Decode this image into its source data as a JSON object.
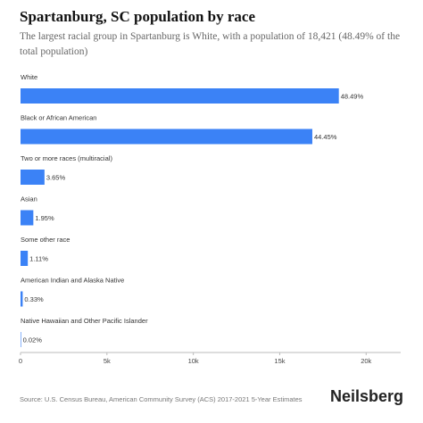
{
  "header": {
    "title": "Spartanburg, SC population by race",
    "subtitle": "The largest racial group in Spartanburg is White, with a population of 18,421 (48.49% of the total population)"
  },
  "footer": {
    "source": "Source: U.S. Census Bureau, American Community Survey (ACS) 2017-2021 5-Year Estimates",
    "brand": "Neilsberg"
  },
  "colors": {
    "bar": "#3b82f6",
    "axis": "#bbbbbb"
  },
  "chart_data": {
    "type": "bar",
    "orientation": "horizontal",
    "categories": [
      "White",
      "Black or African American",
      "Two or more races (multiracial)",
      "Asian",
      "Some other race",
      "American Indian and Alaska Native",
      "Native Hawaiian and Other Pacific Islander"
    ],
    "values": [
      18421,
      16886,
      1387,
      741,
      422,
      125,
      8
    ],
    "data_labels": [
      "48.49%",
      "44.45%",
      "3.65%",
      "1.95%",
      "1.11%",
      "0.33%",
      "0.02%"
    ],
    "xlim": [
      0,
      22000
    ],
    "xticks": [
      0,
      5000,
      10000,
      15000,
      20000
    ],
    "xtick_labels": [
      "0",
      "5k",
      "10k",
      "15k",
      "20k"
    ],
    "grid": false,
    "legend": "none"
  }
}
